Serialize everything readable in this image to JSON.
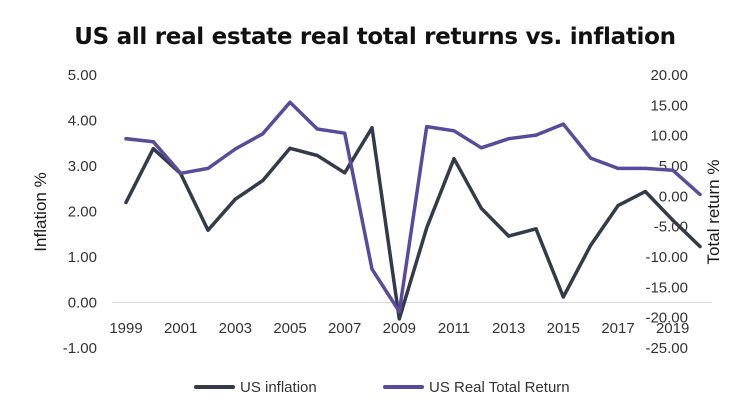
{
  "chart_data": {
    "type": "line",
    "title": "US all real estate real total returns vs. inflation",
    "x": [
      1999,
      2000,
      2001,
      2002,
      2003,
      2004,
      2005,
      2006,
      2007,
      2008,
      2009,
      2010,
      2011,
      2012,
      2013,
      2014,
      2015,
      2016,
      2017,
      2018,
      2019,
      2020
    ],
    "x_tick_labels": [
      "1999",
      "2001",
      "2003",
      "2005",
      "2007",
      "2009",
      "2011",
      "2013",
      "2015",
      "2017",
      "2019"
    ],
    "ylabel": "Inflation %",
    "y2label": "Total return %",
    "ylim": [
      -1,
      5
    ],
    "y2lim": [
      -25,
      20
    ],
    "y_tick_labels": [
      "5.00",
      "4.00",
      "3.00",
      "2.00",
      "1.00",
      "0.00",
      "-1.00"
    ],
    "y2_tick_labels": [
      "20.00",
      "15.00",
      "10.00",
      "5.00",
      "0.00",
      "-5.00",
      "-10.00",
      "-15.00",
      "-20.00",
      "-25.00"
    ],
    "grid": false,
    "legend_position": "bottom",
    "series": [
      {
        "name": "US inflation",
        "axis": "left",
        "color": "#333a4a",
        "values": [
          2.2,
          3.38,
          2.83,
          1.59,
          2.27,
          2.68,
          3.39,
          3.23,
          2.85,
          3.84,
          -0.36,
          1.64,
          3.16,
          2.07,
          1.46,
          1.62,
          0.12,
          1.26,
          2.13,
          2.44,
          1.81,
          1.23
        ]
      },
      {
        "name": "US Real Total Return",
        "axis": "right",
        "color": "#5a4a9c",
        "values": [
          9.5,
          9.0,
          3.8,
          4.6,
          7.8,
          10.3,
          15.5,
          11.1,
          10.4,
          -12.0,
          -19.0,
          11.5,
          10.8,
          8.0,
          9.5,
          10.1,
          11.9,
          6.3,
          4.6,
          4.6,
          4.3,
          0.3
        ]
      }
    ]
  }
}
